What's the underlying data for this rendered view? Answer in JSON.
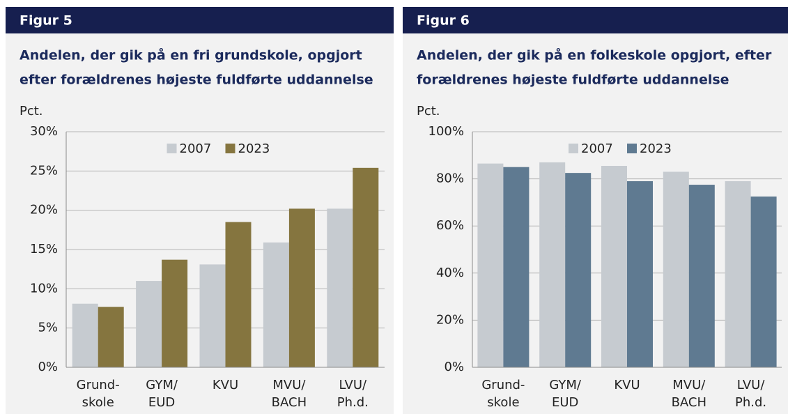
{
  "chart_data": [
    {
      "type": "bar",
      "label": "Figur 5",
      "title": [
        "Andelen, der gik på en fri grundskole, opgjort",
        "efter forældrenes højeste fuldførte uddannelse"
      ],
      "y_label": "Pct.",
      "categories": [
        [
          "Grund-",
          "skole"
        ],
        [
          "GYM/",
          "EUD"
        ],
        [
          "KVU"
        ],
        [
          "MVU/",
          "BACH"
        ],
        [
          "LVU/",
          "Ph.d."
        ]
      ],
      "series": [
        {
          "name": "2007",
          "color": "#c6cbd0",
          "values": [
            8.1,
            11.0,
            13.1,
            15.9,
            20.2
          ]
        },
        {
          "name": "2023",
          "color": "#85753f",
          "values": [
            7.7,
            13.7,
            18.5,
            20.2,
            25.4
          ]
        }
      ],
      "ylim": [
        0,
        30
      ],
      "yticks": [
        {
          "value": 0,
          "label": "0%"
        },
        {
          "value": 5,
          "label": "5%"
        },
        {
          "value": 10,
          "label": "10%"
        },
        {
          "value": 15,
          "label": "15%"
        },
        {
          "value": 20,
          "label": "20%"
        },
        {
          "value": 25,
          "label": "25%"
        },
        {
          "value": 30,
          "label": "30%"
        }
      ],
      "grid": true,
      "legend": "top"
    },
    {
      "type": "bar",
      "label": "Figur 6",
      "title": [
        "Andelen, der gik på en folkeskole opgjort, efter",
        "forældrenes højeste fuldførte uddannelse"
      ],
      "y_label": "Pct.",
      "categories": [
        [
          "Grund-",
          "skole"
        ],
        [
          "GYM/",
          "EUD"
        ],
        [
          "KVU"
        ],
        [
          "MVU/",
          "BACH"
        ],
        [
          "LVU/",
          "Ph.d."
        ]
      ],
      "series": [
        {
          "name": "2007",
          "color": "#c6cbd0",
          "values": [
            86.5,
            87,
            85.5,
            83,
            79
          ]
        },
        {
          "name": "2023",
          "color": "#5f7a91",
          "values": [
            85,
            82.5,
            79,
            77.5,
            72.5
          ]
        }
      ],
      "ylim": [
        0,
        100
      ],
      "yticks": [
        {
          "value": 0,
          "label": "0%"
        },
        {
          "value": 20,
          "label": "20%"
        },
        {
          "value": 40,
          "label": "40%"
        },
        {
          "value": 60,
          "label": "60%"
        },
        {
          "value": 80,
          "label": "80%"
        },
        {
          "value": 100,
          "label": "100%"
        }
      ],
      "grid": true,
      "legend": "top"
    }
  ]
}
